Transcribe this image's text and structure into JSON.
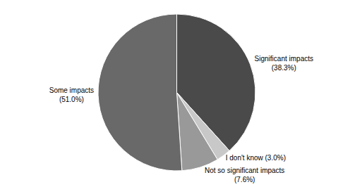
{
  "chart_data": {
    "type": "pie",
    "categories": [
      "Significant impacts\n(38.3%)",
      "I don't know (3.0%)",
      "Not so significant impacts\n(7.6%)",
      "Some impacts\n(51.0%)"
    ],
    "values": [
      38.3,
      3.0,
      7.6,
      51.0
    ],
    "colors": [
      "#4a4a4a",
      "#c8c8c8",
      "#999999",
      "#696969"
    ],
    "data_labels": true
  }
}
